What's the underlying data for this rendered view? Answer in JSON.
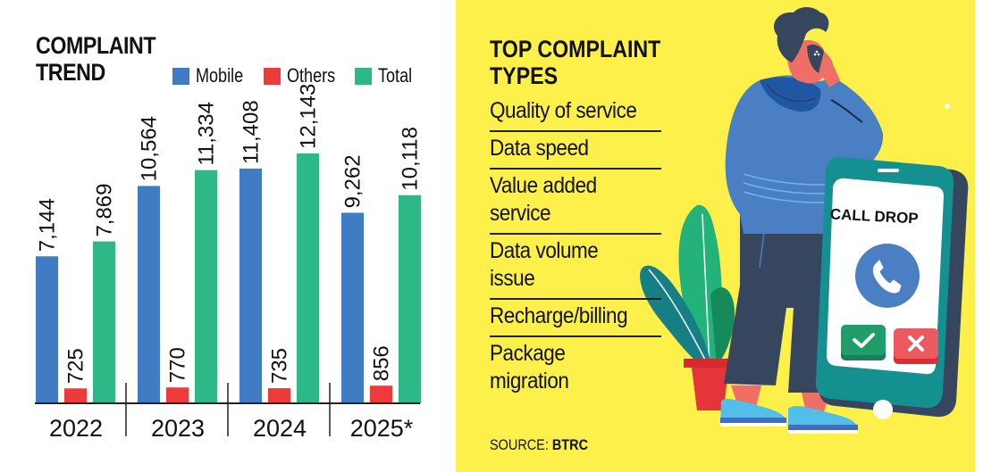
{
  "chart_data": {
    "type": "bar",
    "title": "COMPLAINT TREND",
    "title_lines": [
      "COMPLAINT",
      "TREND"
    ],
    "categories": [
      "2022",
      "2023",
      "2024",
      "2025*"
    ],
    "series": [
      {
        "name": "Mobile",
        "color": "#3f7cc4",
        "values": [
          7144,
          10564,
          11408,
          9262
        ],
        "labels": [
          "7,144",
          "10,564",
          "11,408",
          "9,262"
        ]
      },
      {
        "name": "Others",
        "color": "#ee3a3d",
        "values": [
          725,
          770,
          735,
          856
        ],
        "labels": [
          "725",
          "770",
          "735",
          "856"
        ]
      },
      {
        "name": "Total",
        "color": "#2fb887",
        "values": [
          7869,
          11334,
          12143,
          10118
        ],
        "labels": [
          "7,869",
          "11,334",
          "12,143",
          "10,118"
        ]
      }
    ],
    "xlabel": "",
    "ylabel": "",
    "ylim": [
      0,
      12143
    ],
    "grid": false,
    "legend": "top",
    "data_labels": "rotated vertical above bars"
  },
  "complaint_types": {
    "title_lines": [
      "TOP COMPLAINT",
      "TYPES"
    ],
    "items": [
      {
        "lines": [
          "Quality of service"
        ]
      },
      {
        "lines": [
          "Data speed"
        ]
      },
      {
        "lines": [
          "Value added",
          "service"
        ]
      },
      {
        "lines": [
          "Data volume",
          "issue"
        ]
      },
      {
        "lines": [
          "Recharge/billing"
        ]
      },
      {
        "lines": [
          "Package",
          "migration"
        ]
      }
    ]
  },
  "source": {
    "label": "SOURCE:",
    "value": "BTRC"
  },
  "illustration": {
    "phone_screen_text": "CALL DROP",
    "colors": {
      "background": "#fdf04a",
      "hoodie": "#4a7fc3",
      "pants": "#37465f",
      "phone_frame": "#159090",
      "accept": "#1f9e6a",
      "reject": "#ea5a5e"
    }
  }
}
